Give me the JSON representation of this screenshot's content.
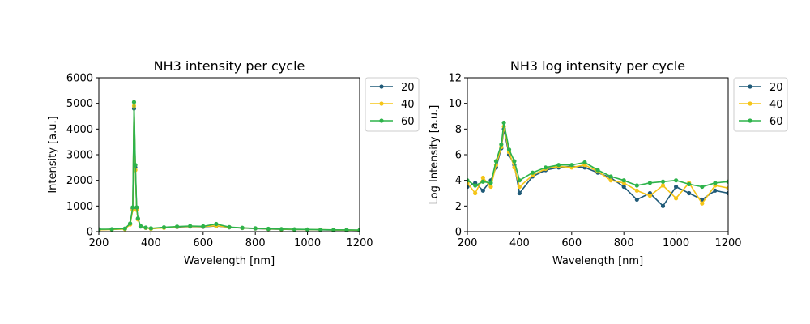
{
  "chart_data": [
    {
      "type": "line",
      "title": "NH3 intensity per cycle",
      "xlabel": "Wavelength [nm]",
      "ylabel": "Intensity [a.u.]",
      "xlim": [
        200,
        1200
      ],
      "ylim": [
        0,
        6000
      ],
      "xticks": [
        "200",
        "400",
        "600",
        "800",
        "1000",
        "1200"
      ],
      "yticks": [
        "0",
        "1000",
        "2000",
        "3000",
        "4000",
        "5000",
        "6000"
      ],
      "legend_position": "outside-top-right",
      "series": [
        {
          "name": "20",
          "color": "#1f5a78",
          "x": [
            200,
            250,
            300,
            320,
            330,
            335,
            340,
            345,
            350,
            360,
            380,
            400,
            450,
            500,
            550,
            600,
            650,
            700,
            750,
            800,
            850,
            900,
            950,
            1000,
            1050,
            1100,
            1150,
            1200
          ],
          "y": [
            80,
            90,
            110,
            300,
            900,
            4800,
            2500,
            900,
            500,
            200,
            150,
            120,
            160,
            180,
            200,
            190,
            220,
            170,
            140,
            120,
            100,
            90,
            80,
            80,
            70,
            60,
            60,
            50
          ]
        },
        {
          "name": "40",
          "color": "#f5c518",
          "x": [
            200,
            250,
            300,
            320,
            330,
            335,
            340,
            345,
            350,
            360,
            380,
            400,
            450,
            500,
            550,
            600,
            650,
            700,
            750,
            800,
            850,
            900,
            950,
            1000,
            1050,
            1100,
            1150,
            1200
          ],
          "y": [
            70,
            85,
            100,
            280,
            850,
            4900,
            2400,
            850,
            480,
            210,
            150,
            110,
            150,
            190,
            210,
            200,
            230,
            175,
            145,
            125,
            105,
            95,
            85,
            80,
            75,
            65,
            60,
            55
          ]
        },
        {
          "name": "60",
          "color": "#2db34a",
          "x": [
            200,
            250,
            300,
            320,
            330,
            335,
            340,
            345,
            350,
            360,
            380,
            400,
            450,
            500,
            550,
            600,
            650,
            700,
            750,
            800,
            850,
            900,
            950,
            1000,
            1050,
            1100,
            1150,
            1200
          ],
          "y": [
            90,
            95,
            120,
            320,
            950,
            5050,
            2600,
            950,
            520,
            220,
            160,
            130,
            170,
            200,
            220,
            210,
            300,
            180,
            150,
            130,
            110,
            100,
            90,
            85,
            75,
            70,
            65,
            60
          ]
        }
      ]
    },
    {
      "type": "line",
      "title": "NH3 log intensity per cycle",
      "xlabel": "Wavelength [nm]",
      "ylabel": "Log Intensity [a.u.]",
      "xlim": [
        200,
        1200
      ],
      "ylim": [
        0,
        12
      ],
      "xticks": [
        "200",
        "400",
        "600",
        "800",
        "1000",
        "1200"
      ],
      "yticks": [
        "0",
        "2",
        "4",
        "6",
        "8",
        "10",
        "12"
      ],
      "legend_position": "outside-top-right",
      "series": [
        {
          "name": "20",
          "color": "#1f5a78",
          "x": [
            200,
            230,
            260,
            290,
            310,
            330,
            340,
            360,
            380,
            400,
            450,
            500,
            550,
            600,
            650,
            700,
            750,
            800,
            850,
            900,
            950,
            1000,
            1050,
            1100,
            1150,
            1200
          ],
          "y": [
            3.5,
            3.8,
            3.2,
            4.0,
            5.0,
            6.5,
            8.0,
            6.0,
            5.2,
            3.0,
            4.3,
            4.8,
            5.0,
            5.1,
            5.0,
            4.6,
            4.2,
            3.5,
            2.5,
            3.0,
            2.0,
            3.5,
            3.0,
            2.5,
            3.2,
            3.0
          ]
        },
        {
          "name": "40",
          "color": "#f5c518",
          "x": [
            200,
            230,
            260,
            290,
            310,
            330,
            340,
            360,
            380,
            400,
            450,
            500,
            550,
            600,
            650,
            700,
            750,
            800,
            850,
            900,
            950,
            1000,
            1050,
            1100,
            1150,
            1200
          ],
          "y": [
            3.8,
            3.0,
            4.2,
            3.5,
            5.2,
            6.6,
            8.2,
            6.2,
            5.0,
            3.5,
            4.4,
            4.9,
            5.1,
            5.0,
            5.2,
            4.7,
            4.0,
            3.8,
            3.2,
            2.8,
            3.6,
            2.6,
            3.8,
            2.2,
            3.6,
            3.4
          ]
        },
        {
          "name": "60",
          "color": "#2db34a",
          "x": [
            200,
            230,
            260,
            290,
            310,
            330,
            340,
            360,
            380,
            400,
            450,
            500,
            550,
            600,
            650,
            700,
            750,
            800,
            850,
            900,
            950,
            1000,
            1050,
            1100,
            1150,
            1200
          ],
          "y": [
            4.0,
            3.6,
            3.9,
            3.8,
            5.5,
            6.8,
            8.5,
            6.4,
            5.5,
            4.0,
            4.6,
            5.0,
            5.2,
            5.2,
            5.4,
            4.8,
            4.3,
            4.0,
            3.6,
            3.8,
            3.9,
            4.0,
            3.7,
            3.5,
            3.8,
            3.9
          ]
        }
      ]
    }
  ]
}
